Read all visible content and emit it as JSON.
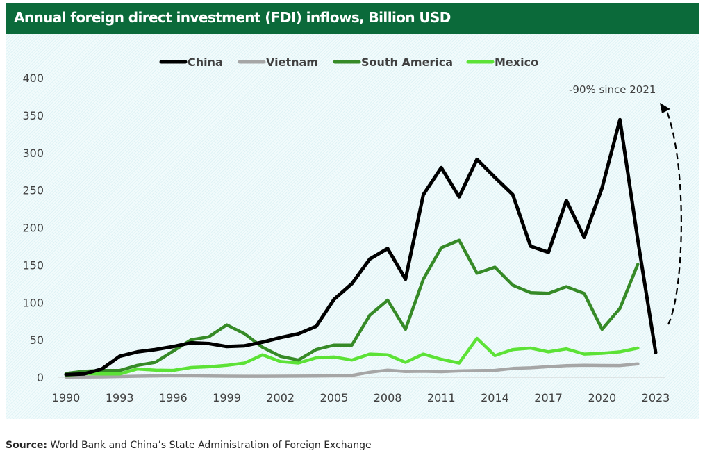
{
  "header": {
    "title": "Annual foreign direct investment (FDI) inflows, Billion USD"
  },
  "source": {
    "label": "Source:",
    "text": "World Bank and China’s State Administration of Foreign Exchange"
  },
  "chart_data": {
    "type": "line",
    "title": "Annual foreign direct investment (FDI) inflows, Billion USD",
    "xlabel": "",
    "ylabel": "",
    "x": [
      1990,
      1991,
      1992,
      1993,
      1994,
      1995,
      1996,
      1997,
      1998,
      1999,
      2000,
      2001,
      2002,
      2003,
      2004,
      2005,
      2006,
      2007,
      2008,
      2009,
      2010,
      2011,
      2012,
      2013,
      2014,
      2015,
      2016,
      2017,
      2018,
      2019,
      2020,
      2021,
      2022,
      2023
    ],
    "xlim": [
      1990,
      2023
    ],
    "ylim": [
      0,
      400
    ],
    "yticks": [
      0,
      50,
      100,
      150,
      200,
      250,
      300,
      350,
      400
    ],
    "xticks": [
      1990,
      1993,
      1996,
      1999,
      2002,
      2005,
      2008,
      2011,
      2014,
      2017,
      2020,
      2023
    ],
    "grid": false,
    "legend_position": "top-center",
    "series": [
      {
        "name": "China",
        "color": "#000000",
        "values": [
          3.5,
          4.4,
          11,
          28,
          34,
          37,
          41,
          46,
          45,
          41,
          42,
          47,
          53,
          58,
          68,
          104,
          125,
          158,
          172,
          131,
          244,
          280,
          241,
          291,
          267,
          244,
          175,
          167,
          236,
          187,
          253,
          344,
          183,
          33
        ]
      },
      {
        "name": "Vietnam",
        "color": "#a6a6a6",
        "values": [
          0.2,
          0.4,
          0.5,
          0.9,
          1.4,
          1.8,
          2.4,
          2.2,
          1.7,
          1.4,
          1.3,
          1.3,
          1.4,
          1.5,
          1.6,
          2.0,
          2.4,
          6.7,
          9.6,
          7.6,
          8.0,
          7.4,
          8.4,
          8.9,
          9.2,
          11.8,
          12.6,
          14.1,
          15.5,
          16.1,
          15.8,
          15.7,
          17.9,
          null
        ]
      },
      {
        "name": "South America",
        "color": "#368a27",
        "values": [
          5,
          8,
          9,
          9,
          16,
          20,
          35,
          50,
          54,
          70,
          58,
          40,
          28,
          23,
          37,
          43,
          43,
          83,
          103,
          64,
          131,
          173,
          183,
          139,
          147,
          123,
          113,
          112,
          121,
          112,
          64,
          92,
          151,
          null
        ]
      },
      {
        "name": "Mexico",
        "color": "#5ce236",
        "values": [
          2.5,
          4.7,
          4.4,
          4.4,
          11,
          9.5,
          9.2,
          13,
          14,
          16,
          19,
          30,
          21,
          19,
          26,
          27,
          23,
          31,
          30,
          20,
          31,
          24,
          19,
          52,
          29,
          37,
          39,
          34,
          38,
          31,
          32,
          34,
          39,
          null
        ]
      }
    ],
    "annotations": [
      {
        "text": "-90% since 2021",
        "type": "curved-dashed-arrow",
        "from": "2023",
        "to": "2021"
      }
    ]
  }
}
